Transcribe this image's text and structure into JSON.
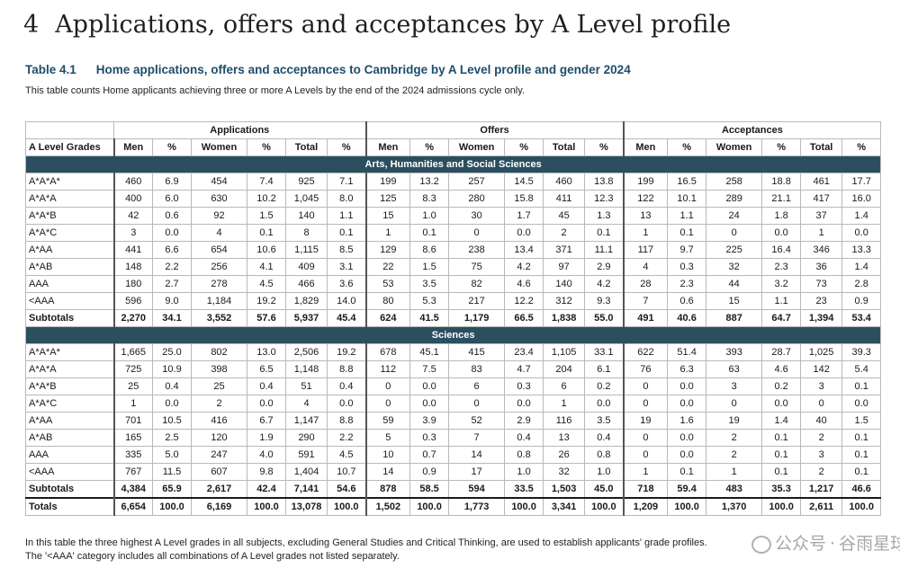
{
  "heading": {
    "number": "4",
    "title": "Applications, offers and acceptances by A Level profile"
  },
  "caption": {
    "label": "Table 4.1",
    "title": "Home applications, offers and acceptances to Cambridge by A Level profile and gender 2024"
  },
  "subcaption": "This table counts Home applicants achieving three or more A Levels by the end of the 2024 admissions cycle only.",
  "table": {
    "groups": [
      "Applications",
      "Offers",
      "Acceptances"
    ],
    "first_col": "A Level Grades",
    "columns": [
      "Men",
      "%",
      "Women",
      "%",
      "Total",
      "%"
    ],
    "sections": [
      {
        "title": "Arts, Humanities and Social Sciences",
        "rows": [
          {
            "grade": "A*A*A*",
            "cells": [
              "460",
              "6.9",
              "454",
              "7.4",
              "925",
              "7.1",
              "199",
              "13.2",
              "257",
              "14.5",
              "460",
              "13.8",
              "199",
              "16.5",
              "258",
              "18.8",
              "461",
              "17.7"
            ]
          },
          {
            "grade": "A*A*A",
            "cells": [
              "400",
              "6.0",
              "630",
              "10.2",
              "1,045",
              "8.0",
              "125",
              "8.3",
              "280",
              "15.8",
              "411",
              "12.3",
              "122",
              "10.1",
              "289",
              "21.1",
              "417",
              "16.0"
            ]
          },
          {
            "grade": "A*A*B",
            "cells": [
              "42",
              "0.6",
              "92",
              "1.5",
              "140",
              "1.1",
              "15",
              "1.0",
              "30",
              "1.7",
              "45",
              "1.3",
              "13",
              "1.1",
              "24",
              "1.8",
              "37",
              "1.4"
            ]
          },
          {
            "grade": "A*A*C",
            "cells": [
              "3",
              "0.0",
              "4",
              "0.1",
              "8",
              "0.1",
              "1",
              "0.1",
              "0",
              "0.0",
              "2",
              "0.1",
              "1",
              "0.1",
              "0",
              "0.0",
              "1",
              "0.0"
            ]
          },
          {
            "grade": "A*AA",
            "cells": [
              "441",
              "6.6",
              "654",
              "10.6",
              "1,115",
              "8.5",
              "129",
              "8.6",
              "238",
              "13.4",
              "371",
              "11.1",
              "117",
              "9.7",
              "225",
              "16.4",
              "346",
              "13.3"
            ]
          },
          {
            "grade": "A*AB",
            "cells": [
              "148",
              "2.2",
              "256",
              "4.1",
              "409",
              "3.1",
              "22",
              "1.5",
              "75",
              "4.2",
              "97",
              "2.9",
              "4",
              "0.3",
              "32",
              "2.3",
              "36",
              "1.4"
            ]
          },
          {
            "grade": "AAA",
            "cells": [
              "180",
              "2.7",
              "278",
              "4.5",
              "466",
              "3.6",
              "53",
              "3.5",
              "82",
              "4.6",
              "140",
              "4.2",
              "28",
              "2.3",
              "44",
              "3.2",
              "73",
              "2.8"
            ]
          },
          {
            "grade": "<AAA",
            "cells": [
              "596",
              "9.0",
              "1,184",
              "19.2",
              "1,829",
              "14.0",
              "80",
              "5.3",
              "217",
              "12.2",
              "312",
              "9.3",
              "7",
              "0.6",
              "15",
              "1.1",
              "23",
              "0.9"
            ]
          }
        ],
        "subtotal": {
          "grade": "Subtotals",
          "cells": [
            "2,270",
            "34.1",
            "3,552",
            "57.6",
            "5,937",
            "45.4",
            "624",
            "41.5",
            "1,179",
            "66.5",
            "1,838",
            "55.0",
            "491",
            "40.6",
            "887",
            "64.7",
            "1,394",
            "53.4"
          ]
        }
      },
      {
        "title": "Sciences",
        "rows": [
          {
            "grade": "A*A*A*",
            "cells": [
              "1,665",
              "25.0",
              "802",
              "13.0",
              "2,506",
              "19.2",
              "678",
              "45.1",
              "415",
              "23.4",
              "1,105",
              "33.1",
              "622",
              "51.4",
              "393",
              "28.7",
              "1,025",
              "39.3"
            ]
          },
          {
            "grade": "A*A*A",
            "cells": [
              "725",
              "10.9",
              "398",
              "6.5",
              "1,148",
              "8.8",
              "112",
              "7.5",
              "83",
              "4.7",
              "204",
              "6.1",
              "76",
              "6.3",
              "63",
              "4.6",
              "142",
              "5.4"
            ]
          },
          {
            "grade": "A*A*B",
            "cells": [
              "25",
              "0.4",
              "25",
              "0.4",
              "51",
              "0.4",
              "0",
              "0.0",
              "6",
              "0.3",
              "6",
              "0.2",
              "0",
              "0.0",
              "3",
              "0.2",
              "3",
              "0.1"
            ]
          },
          {
            "grade": "A*A*C",
            "cells": [
              "1",
              "0.0",
              "2",
              "0.0",
              "4",
              "0.0",
              "0",
              "0.0",
              "0",
              "0.0",
              "1",
              "0.0",
              "0",
              "0.0",
              "0",
              "0.0",
              "0",
              "0.0"
            ]
          },
          {
            "grade": "A*AA",
            "cells": [
              "701",
              "10.5",
              "416",
              "6.7",
              "1,147",
              "8.8",
              "59",
              "3.9",
              "52",
              "2.9",
              "116",
              "3.5",
              "19",
              "1.6",
              "19",
              "1.4",
              "40",
              "1.5"
            ]
          },
          {
            "grade": "A*AB",
            "cells": [
              "165",
              "2.5",
              "120",
              "1.9",
              "290",
              "2.2",
              "5",
              "0.3",
              "7",
              "0.4",
              "13",
              "0.4",
              "0",
              "0.0",
              "2",
              "0.1",
              "2",
              "0.1"
            ]
          },
          {
            "grade": "AAA",
            "cells": [
              "335",
              "5.0",
              "247",
              "4.0",
              "591",
              "4.5",
              "10",
              "0.7",
              "14",
              "0.8",
              "26",
              "0.8",
              "0",
              "0.0",
              "2",
              "0.1",
              "3",
              "0.1"
            ]
          },
          {
            "grade": "<AAA",
            "cells": [
              "767",
              "11.5",
              "607",
              "9.8",
              "1,404",
              "10.7",
              "14",
              "0.9",
              "17",
              "1.0",
              "32",
              "1.0",
              "1",
              "0.1",
              "1",
              "0.1",
              "2",
              "0.1"
            ]
          }
        ],
        "subtotal": {
          "grade": "Subtotals",
          "cells": [
            "4,384",
            "65.9",
            "2,617",
            "42.4",
            "7,141",
            "54.6",
            "878",
            "58.5",
            "594",
            "33.5",
            "1,503",
            "45.0",
            "718",
            "59.4",
            "483",
            "35.3",
            "1,217",
            "46.6"
          ]
        }
      }
    ],
    "totals": {
      "grade": "Totals",
      "cells": [
        "6,654",
        "100.0",
        "6,169",
        "100.0",
        "13,078",
        "100.0",
        "1,502",
        "100.0",
        "1,773",
        "100.0",
        "3,341",
        "100.0",
        "1,209",
        "100.0",
        "1,370",
        "100.0",
        "2,611",
        "100.0"
      ]
    }
  },
  "notes": [
    "In this table the three highest A Level grades in all subjects, excluding General Studies and Critical Thinking, are used to establish applicants' grade profiles.",
    "The '<AAA' category includes all combinations of A Level grades not listed separately."
  ],
  "watermark": {
    "left": "公众号",
    "sep": "·",
    "right": "谷雨星球"
  }
}
